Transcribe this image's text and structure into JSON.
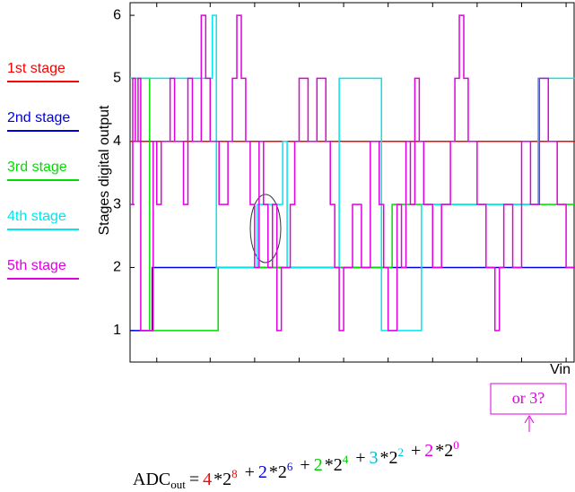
{
  "chart_data": {
    "type": "step-line",
    "y_label": "Stages digital output",
    "x_label": "Vin",
    "xlim": [
      0,
      100
    ],
    "xticks": [
      6,
      18,
      28,
      38,
      48,
      58,
      68,
      78,
      88,
      98
    ],
    "ylim": [
      0.5,
      6.2
    ],
    "yticks": [
      1,
      2,
      3,
      4,
      5,
      6
    ],
    "grid": false,
    "legend": "left",
    "series": [
      {
        "name": "1st stage",
        "color": "#ff0000",
        "x": [
          0,
          100
        ],
        "values": [
          4,
          4
        ]
      },
      {
        "name": "2nd stage",
        "color": "#0000dd",
        "x": [
          0,
          5,
          100
        ],
        "values": [
          1,
          2,
          2
        ]
      },
      {
        "name": "3rd stage",
        "color": "#00dd00",
        "x": [
          0,
          4.4,
          19.8,
          58.9,
          100
        ],
        "values": [
          5,
          1,
          2,
          3,
          3
        ]
      },
      {
        "name": "4th stage",
        "color": "#00e5ee",
        "x": [
          0,
          18.5,
          19.4,
          28.6,
          34.3,
          35.3,
          47,
          56.5,
          65.5,
          91.7,
          100
        ],
        "values": [
          5,
          6,
          2,
          3,
          4,
          2,
          5,
          1,
          3,
          5,
          5
        ]
      },
      {
        "name": "5th stage",
        "color": "#e000e0",
        "x": [
          0,
          0.6,
          1.2,
          1.8,
          2.4,
          5.2,
          6,
          7,
          9,
          10,
          12,
          13,
          14,
          16,
          17,
          18,
          20,
          22,
          23,
          24,
          25,
          26,
          27,
          28,
          29,
          30,
          31,
          32,
          33,
          34,
          36,
          37,
          38,
          40,
          42,
          44,
          45,
          46,
          47,
          48,
          50,
          52,
          54,
          56,
          57,
          58,
          60,
          61,
          62,
          63,
          64,
          65,
          66,
          68,
          70,
          72,
          73,
          74,
          75,
          76,
          78,
          80,
          82,
          83,
          84,
          86,
          88,
          90,
          92,
          94,
          96,
          98,
          100
        ],
        "values": [
          3,
          5,
          4,
          5,
          1,
          4,
          3,
          4,
          5,
          4,
          3,
          5,
          4,
          6,
          5,
          4,
          3,
          4,
          5,
          6,
          5,
          4,
          3,
          2,
          4,
          3,
          2,
          3,
          1,
          2,
          3,
          4,
          5,
          4,
          5,
          4,
          3,
          2,
          1,
          2,
          3,
          2,
          4,
          3,
          2,
          1,
          3,
          2,
          4,
          3,
          5,
          4,
          3,
          2,
          3,
          4,
          5,
          6,
          5,
          4,
          3,
          2,
          1,
          2,
          3,
          2,
          4,
          3,
          5,
          4,
          3,
          2,
          2
        ]
      }
    ],
    "annotation": "or 3?",
    "formula": {
      "lhs": "ADC",
      "sub": "out",
      "eq": "=",
      "terms": [
        {
          "sign": "",
          "coef": 4,
          "base": "*2",
          "exp": 8,
          "color": "#ff0000"
        },
        {
          "sign": "+",
          "coef": 2,
          "base": "*2",
          "exp": 6,
          "color": "#0000dd"
        },
        {
          "sign": "+",
          "coef": 2,
          "base": "*2",
          "exp": 4,
          "color": "#00cc00"
        },
        {
          "sign": "+",
          "coef": 3,
          "base": "*2",
          "exp": 2,
          "color": "#00bbdd"
        },
        {
          "sign": "+",
          "coef": 2,
          "base": "*2",
          "exp": 0,
          "color": "#e000e0"
        }
      ]
    }
  }
}
